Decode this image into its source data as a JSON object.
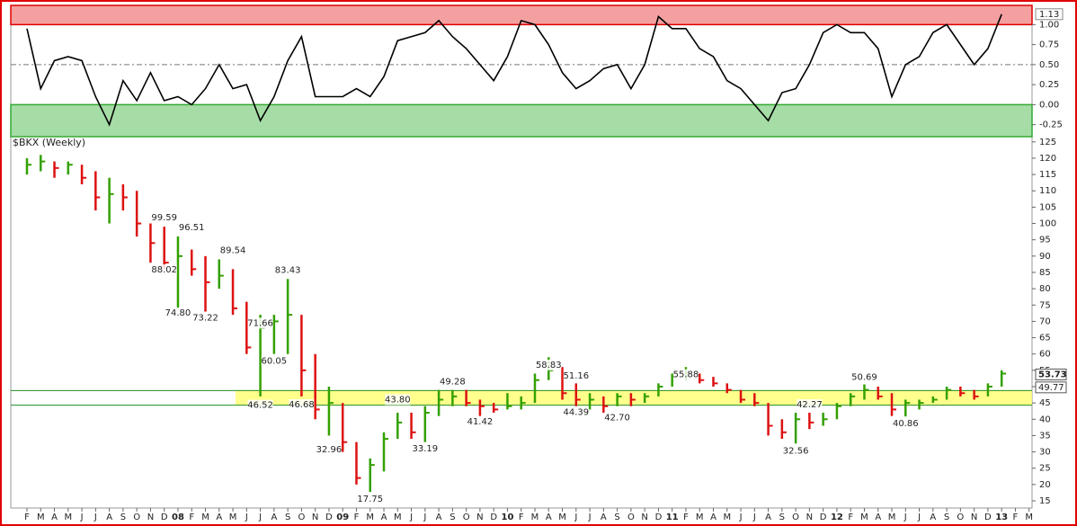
{
  "chart_data": {
    "type": "ohlc",
    "title": "$BKX (Weekly)",
    "categories": [
      "F",
      "M",
      "A",
      "M",
      "J",
      "J",
      "A",
      "S",
      "O",
      "N",
      "D",
      "08",
      "F",
      "M",
      "A",
      "M",
      "J",
      "J",
      "A",
      "S",
      "O",
      "N",
      "D",
      "09",
      "F",
      "M",
      "A",
      "M",
      "J",
      "J",
      "A",
      "S",
      "O",
      "N",
      "D",
      "10",
      "F",
      "M",
      "A",
      "M",
      "J",
      "J",
      "A",
      "S",
      "O",
      "N",
      "D",
      "11",
      "F",
      "M",
      "A",
      "M",
      "J",
      "J",
      "A",
      "S",
      "O",
      "N",
      "D",
      "12",
      "F",
      "M",
      "A",
      "M",
      "J",
      "J",
      "A",
      "S",
      "O",
      "N",
      "D",
      "13",
      "F",
      "M"
    ],
    "high": [
      120,
      121,
      119,
      119,
      118,
      116,
      114,
      112,
      110,
      100,
      99,
      96,
      92,
      90,
      89,
      86,
      76,
      72,
      72,
      83,
      72,
      60,
      50,
      45,
      33,
      28,
      36,
      42,
      42,
      44,
      49,
      49,
      49,
      46,
      45,
      48,
      47,
      54,
      59,
      56,
      51,
      48,
      47,
      48,
      48,
      48,
      51,
      54,
      56,
      54,
      53,
      51,
      49,
      48,
      45,
      40,
      42,
      42,
      42,
      45,
      48,
      50.69,
      50,
      48,
      46,
      46,
      47,
      50,
      50,
      49,
      51,
      55,
      null,
      null
    ],
    "low": [
      115,
      116,
      114,
      115,
      112,
      104,
      100,
      104,
      96,
      88,
      86,
      74,
      84,
      73,
      80,
      72,
      60,
      47,
      60,
      60,
      47,
      40,
      35,
      30,
      20,
      17.75,
      24,
      34,
      34,
      33,
      41,
      44,
      44,
      41,
      42,
      43,
      43,
      45,
      52,
      46,
      44,
      43,
      42,
      44,
      44,
      45,
      47,
      50,
      52,
      51,
      50,
      48,
      45,
      44,
      35,
      34,
      32.56,
      37,
      38,
      40,
      44,
      46,
      46,
      41,
      40.86,
      43,
      45,
      46,
      47,
      46,
      47,
      50,
      null,
      null
    ],
    "close": [
      118,
      119,
      117,
      118,
      114,
      108,
      109,
      108,
      100,
      94,
      88,
      90,
      86,
      82,
      84,
      74,
      62,
      68,
      70,
      72,
      55,
      43,
      45,
      33,
      22,
      26,
      34,
      39,
      36,
      42,
      46,
      47,
      45,
      44,
      43,
      44,
      45,
      52,
      55,
      48,
      46,
      46,
      44,
      47,
      46,
      47,
      50,
      53,
      54,
      52,
      51,
      49,
      46,
      45,
      38,
      36,
      40,
      39,
      40,
      44,
      47,
      49,
      47,
      43,
      45,
      45,
      46,
      49,
      48,
      47,
      50,
      54,
      null,
      null
    ],
    "up_color": "#33a000",
    "down_color": "#dd1111",
    "line_color": "#2222cc",
    "ylim": [
      12.8,
      126.6
    ],
    "yticks": [
      15,
      20,
      25,
      30,
      35,
      40,
      45,
      50,
      55,
      60,
      65,
      70,
      75,
      80,
      85,
      90,
      95,
      100,
      105,
      110,
      115,
      120,
      125
    ],
    "zone": {
      "from": 44.3,
      "to": 48.8,
      "color": "#ffff66",
      "line_color": "#228b22"
    },
    "price_labels": [
      {
        "value": 53.73,
        "label": "53.73"
      },
      {
        "value": 49.77,
        "label": "49.77"
      }
    ],
    "annotations": [
      {
        "index": 10,
        "value": 99.59,
        "label": "99.59"
      },
      {
        "index": 12,
        "value": 96.51,
        "label": "96.51"
      },
      {
        "index": 10,
        "value": 88.02,
        "label": "88.02"
      },
      {
        "index": 15,
        "value": 89.54,
        "label": "89.54"
      },
      {
        "index": 11,
        "value": 74.8,
        "label": "74.80"
      },
      {
        "index": 13,
        "value": 73.22,
        "label": "73.22"
      },
      {
        "index": 19,
        "value": 83.43,
        "label": "83.43"
      },
      {
        "index": 17,
        "value": 71.66,
        "label": "71.66"
      },
      {
        "index": 18,
        "value": 60.05,
        "label": "60.05"
      },
      {
        "index": 17,
        "value": 46.52,
        "label": "46.52"
      },
      {
        "index": 20,
        "value": 46.68,
        "label": "46.68"
      },
      {
        "index": 22,
        "value": 32.96,
        "label": "32.96"
      },
      {
        "index": 25,
        "value": 17.75,
        "label": "17.75"
      },
      {
        "index": 27,
        "value": 43.8,
        "label": "43.80"
      },
      {
        "index": 31,
        "value": 49.28,
        "label": "49.28"
      },
      {
        "index": 33,
        "value": 41.42,
        "label": "41.42"
      },
      {
        "index": 29,
        "value": 33.19,
        "label": "33.19"
      },
      {
        "index": 38,
        "value": 58.83,
        "label": "58.83"
      },
      {
        "index": 40,
        "value": 51.16,
        "label": "51.16"
      },
      {
        "index": 40,
        "value": 44.39,
        "label": "44.39"
      },
      {
        "index": 43,
        "value": 42.7,
        "label": "42.70"
      },
      {
        "index": 48,
        "value": 55.88,
        "label": "55.88"
      },
      {
        "index": 57,
        "value": 42.27,
        "label": "42.27"
      },
      {
        "index": 56,
        "value": 32.56,
        "label": "32.56"
      },
      {
        "index": 61,
        "value": 50.69,
        "label": "50.69"
      },
      {
        "index": 64,
        "value": 40.86,
        "label": "40.86"
      }
    ],
    "indicator": {
      "type": "line",
      "color": "#000000",
      "values": [
        0.95,
        0.2,
        0.55,
        0.6,
        0.55,
        0.1,
        -0.25,
        0.3,
        0.05,
        0.4,
        0.05,
        0.1,
        0.0,
        0.2,
        0.5,
        0.2,
        0.25,
        -0.2,
        0.1,
        0.55,
        0.85,
        0.1,
        0.1,
        0.1,
        0.2,
        0.1,
        0.35,
        0.8,
        0.85,
        0.9,
        1.05,
        0.85,
        0.7,
        0.5,
        0.3,
        0.6,
        1.05,
        1.0,
        0.75,
        0.4,
        0.2,
        0.3,
        0.45,
        0.5,
        0.2,
        0.5,
        1.1,
        0.95,
        0.95,
        0.7,
        0.6,
        0.3,
        0.2,
        0.0,
        -0.2,
        0.15,
        0.2,
        0.5,
        0.9,
        1.0,
        0.9,
        0.9,
        0.7,
        0.1,
        0.5,
        0.6,
        0.9,
        1.0,
        0.75,
        0.5,
        0.7,
        1.13,
        null,
        null
      ],
      "ylim": [
        -0.4,
        1.24
      ],
      "yticks": [
        -0.25,
        {
          "value": 0,
          "label": "0.00"
        },
        {
          "value": 0.25,
          "label": "0.25"
        },
        {
          "value": 0.5,
          "label": "0.50"
        },
        {
          "value": 0.75,
          "label": "0.75"
        },
        {
          "value": 1,
          "label": "1.00"
        }
      ],
      "dashed_line": 0.5,
      "current": {
        "value": 1.13,
        "label": "1.13"
      },
      "bands": [
        {
          "from": 1.0,
          "to": 1.24,
          "color": "#f4a0a0",
          "border": "#dd0000"
        },
        {
          "from": -0.4,
          "to": 0,
          "color": "#a6dca6",
          "border": "#33aa33"
        }
      ]
    }
  }
}
